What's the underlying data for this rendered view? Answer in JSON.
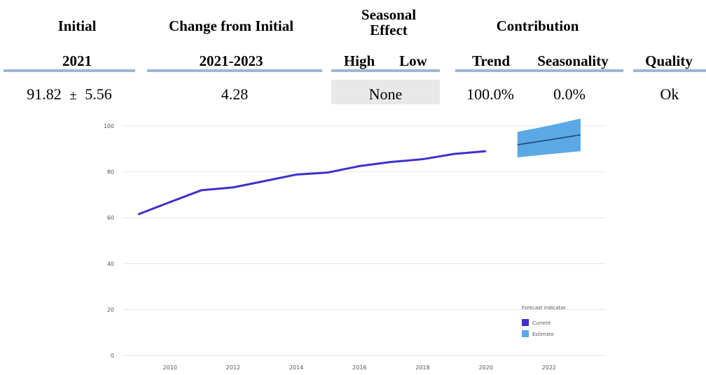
{
  "header": {
    "initial": "Initial",
    "change": "Change from Initial",
    "seasonal_line1": "Seasonal",
    "seasonal_line2": "Effect",
    "contribution": "Contribution"
  },
  "subheader": {
    "year": "2021",
    "range": "2021-2023",
    "high": "High",
    "low": "Low",
    "trend": "Trend",
    "seasonality": "Seasonality",
    "quality": "Quality"
  },
  "values": {
    "initial_value": "91.82",
    "plus_minus": "±",
    "initial_error": "5.56",
    "change": "4.28",
    "seasonal": "None",
    "trend": "100.0%",
    "seasonality": "0.0%",
    "quality": "Ok"
  },
  "colors": {
    "current": "#3f2fcc",
    "estimate": "#5aa9e6",
    "rule": "#9bb7d4"
  },
  "chart_data": {
    "type": "line",
    "title": "",
    "xlabel": "",
    "ylabel": "",
    "xlim": [
      2008.5,
      2023.8
    ],
    "ylim": [
      0,
      100
    ],
    "x_ticks": [
      2010,
      2012,
      2014,
      2016,
      2018,
      2020,
      2022
    ],
    "y_ticks": [
      0,
      20,
      40,
      60,
      80,
      100
    ],
    "grid": true,
    "legend_title": "Forecast indicator",
    "legend_position": "bottom-right",
    "series": [
      {
        "name": "Current",
        "x": [
          2009,
          2010,
          2011,
          2012,
          2013,
          2014,
          2015,
          2016,
          2017,
          2018,
          2019,
          2020
        ],
        "y": [
          61.5,
          66.8,
          72.0,
          73.2,
          76.0,
          78.8,
          79.7,
          82.5,
          84.3,
          85.5,
          87.8,
          89.0
        ]
      },
      {
        "name": "Estimate",
        "x": [
          2021,
          2022,
          2023
        ],
        "y": [
          91.8,
          93.9,
          96.1
        ],
        "lower": [
          86.3,
          87.7,
          89.0
        ],
        "upper": [
          97.4,
          100.1,
          103.2
        ]
      }
    ]
  }
}
